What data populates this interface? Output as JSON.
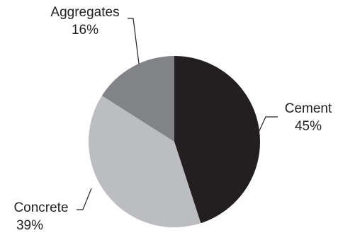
{
  "chart_data": {
    "type": "pie",
    "title": "",
    "slices": [
      {
        "label": "Cement",
        "value": 45,
        "value_label": "45%",
        "color": "#231f20"
      },
      {
        "label": "Concrete",
        "value": 39,
        "value_label": "39%",
        "color": "#bcbdc0"
      },
      {
        "label": "Aggregates",
        "value": 16,
        "value_label": "16%",
        "color": "#828386"
      }
    ],
    "start": "top",
    "direction": "clockwise",
    "legend": "none"
  }
}
